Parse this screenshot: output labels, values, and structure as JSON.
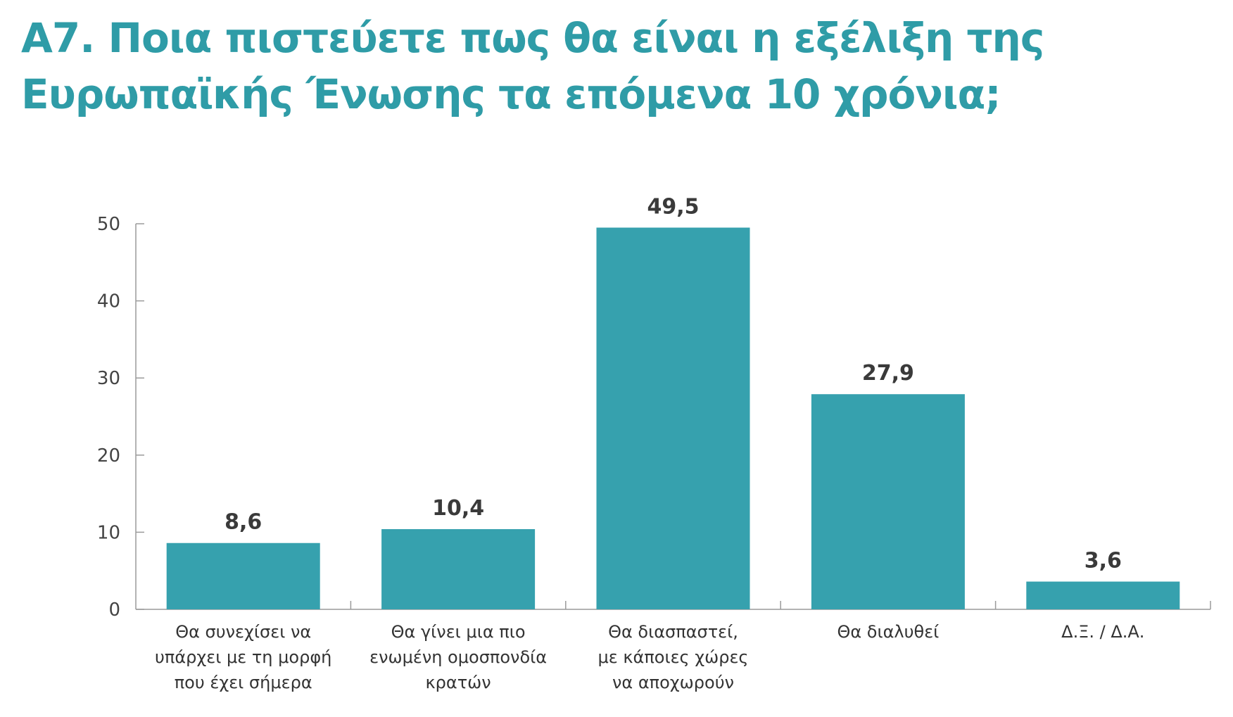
{
  "title_lines": [
    "Α7. Ποια πιστεύετε πως θα είναι η εξέλιξη της",
    "Ευρωπαϊκής Ένωσης τα επόμενα 10 χρόνια;"
  ],
  "colors": {
    "title": "#2f9ca7",
    "bar": "#36a1ae",
    "axis": "#9a9a9a"
  },
  "chart_data": {
    "type": "bar",
    "title": "Α7. Ποια πιστεύετε πως θα είναι η εξέλιξη της Ευρωπαϊκής Ένωσης τα επόμενα 10 χρόνια;",
    "categories": [
      [
        "Θα συνεχίσει να",
        "υπάρχει με τη μορφή",
        "που έχει σήμερα"
      ],
      [
        "Θα γίνει μια πιο",
        "ενωμένη ομοσπονδία",
        "κρατών"
      ],
      [
        "Θα διασπαστεί,",
        "με κάποιες χώρες",
        "να αποχωρούν"
      ],
      [
        "Θα διαλυθεί"
      ],
      [
        "Δ.Ξ. / Δ.Α."
      ]
    ],
    "values": [
      8.6,
      10.4,
      49.5,
      27.9,
      3.6
    ],
    "value_labels": [
      "8,6",
      "10,4",
      "49,5",
      "27,9",
      "3,6"
    ],
    "xlabel": "",
    "ylabel": "",
    "ylim": [
      0,
      50
    ],
    "yticks": [
      0,
      10,
      20,
      30,
      40,
      50
    ],
    "grid": false,
    "legend": "none"
  }
}
